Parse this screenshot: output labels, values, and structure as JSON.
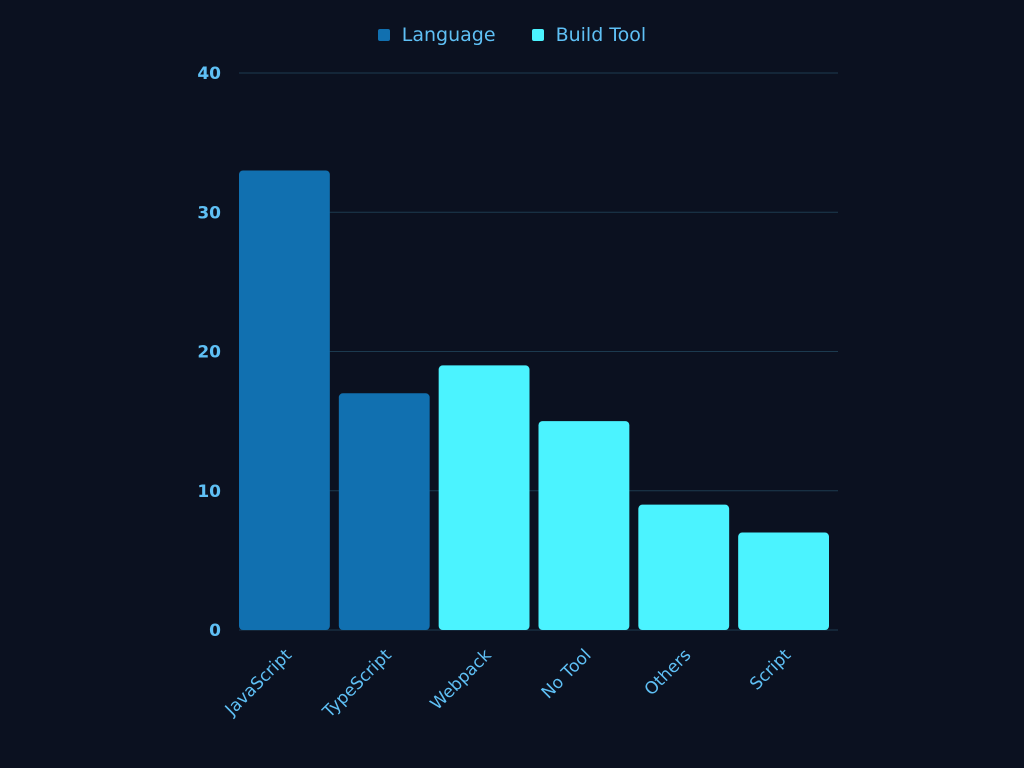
{
  "chart_data": {
    "type": "bar",
    "categories": [
      "JavaScript",
      "TypeScript",
      "Webpack",
      "No Tool",
      "Others",
      "Script"
    ],
    "values": [
      33,
      17,
      19,
      15,
      9,
      7
    ],
    "series_assignment": [
      "Language",
      "Language",
      "Build Tool",
      "Build Tool",
      "Build Tool",
      "Build Tool"
    ],
    "legend": [
      {
        "name": "Language",
        "color": "#1170b0"
      },
      {
        "name": "Build Tool",
        "color": "#4bf3ff"
      }
    ],
    "ylim": [
      0,
      40
    ],
    "yticks": [
      0,
      10,
      20,
      30,
      40
    ],
    "grid": true,
    "legend_position": "top-center",
    "title": "",
    "xlabel": "",
    "ylabel": ""
  },
  "colors": {
    "background": "#0b1120",
    "axis_text": "#5fc0f5",
    "grid": "#1c3a4f"
  }
}
